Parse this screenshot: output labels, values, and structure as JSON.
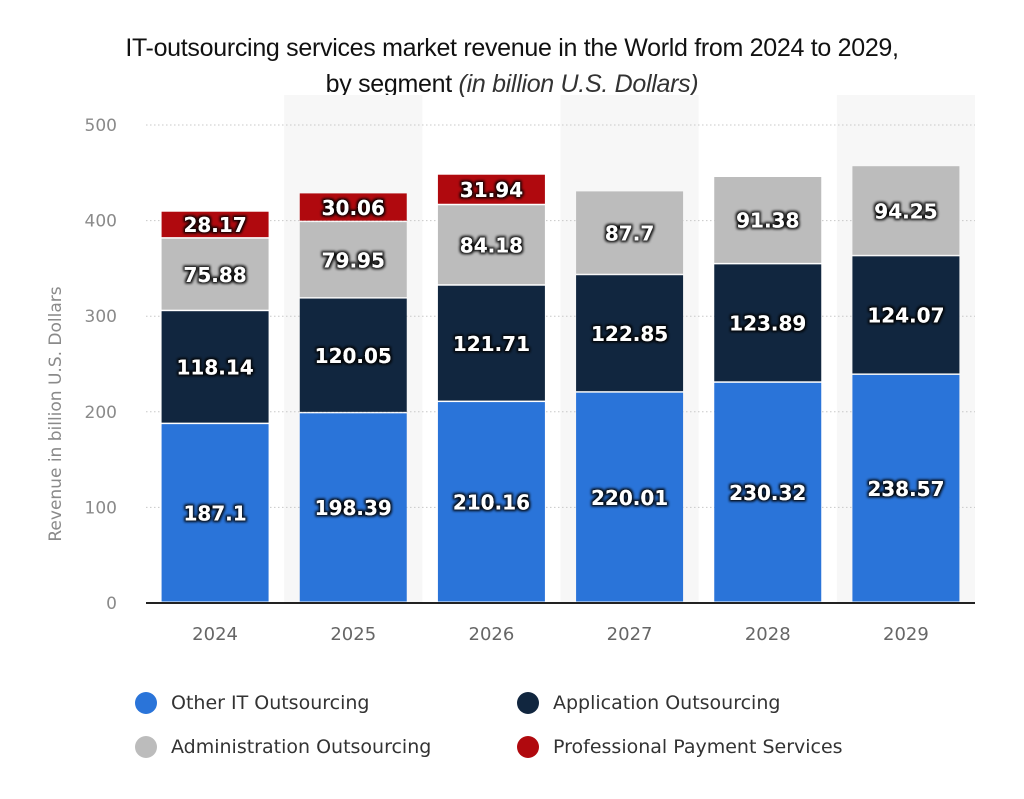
{
  "title": {
    "main": "IT-outsourcing services market revenue in the World from 2024 to 2029,",
    "line2_bold": "by segment",
    "line2_italic": "(in billion U.S. Dollars)"
  },
  "chart_data": {
    "type": "bar",
    "stacked": true,
    "title": "IT-outsourcing services market revenue in the World from 2024 to 2029, by segment (in billion U.S. Dollars)",
    "xlabel": "",
    "ylabel": "Revenue in billion U.S. Dollars",
    "ylim": [
      0,
      500
    ],
    "yticks": [
      0,
      100,
      200,
      300,
      400,
      500
    ],
    "grid": true,
    "legend_position": "bottom",
    "categories": [
      "2024",
      "2025",
      "2026",
      "2027",
      "2028",
      "2029"
    ],
    "series": [
      {
        "name": "Other IT Outsourcing",
        "color": "#2a74d9",
        "values": [
          187.1,
          198.39,
          210.16,
          220.01,
          230.32,
          238.57
        ],
        "labels": [
          "187.1",
          "198.39",
          "210.16",
          "220.01",
          "230.32",
          "238.57"
        ]
      },
      {
        "name": "Application Outsourcing",
        "color": "#11263f",
        "values": [
          118.14,
          120.05,
          121.71,
          122.85,
          123.89,
          124.07
        ],
        "labels": [
          "118.14",
          "120.05",
          "121.71",
          "122.85",
          "123.89",
          "124.07"
        ]
      },
      {
        "name": "Administration Outsourcing",
        "color": "#bcbcbc",
        "values": [
          75.88,
          79.95,
          84.18,
          87.7,
          91.38,
          94.25
        ],
        "labels": [
          "75.88",
          "79.95",
          "84.18",
          "87.7",
          "91.38",
          "94.25"
        ]
      },
      {
        "name": "Professional Payment Services",
        "color": "#b0090e",
        "values": [
          28.17,
          30.06,
          31.94,
          null,
          null,
          null
        ],
        "labels": [
          "28.17",
          "30.06",
          "31.94",
          null,
          null,
          null
        ]
      }
    ]
  }
}
